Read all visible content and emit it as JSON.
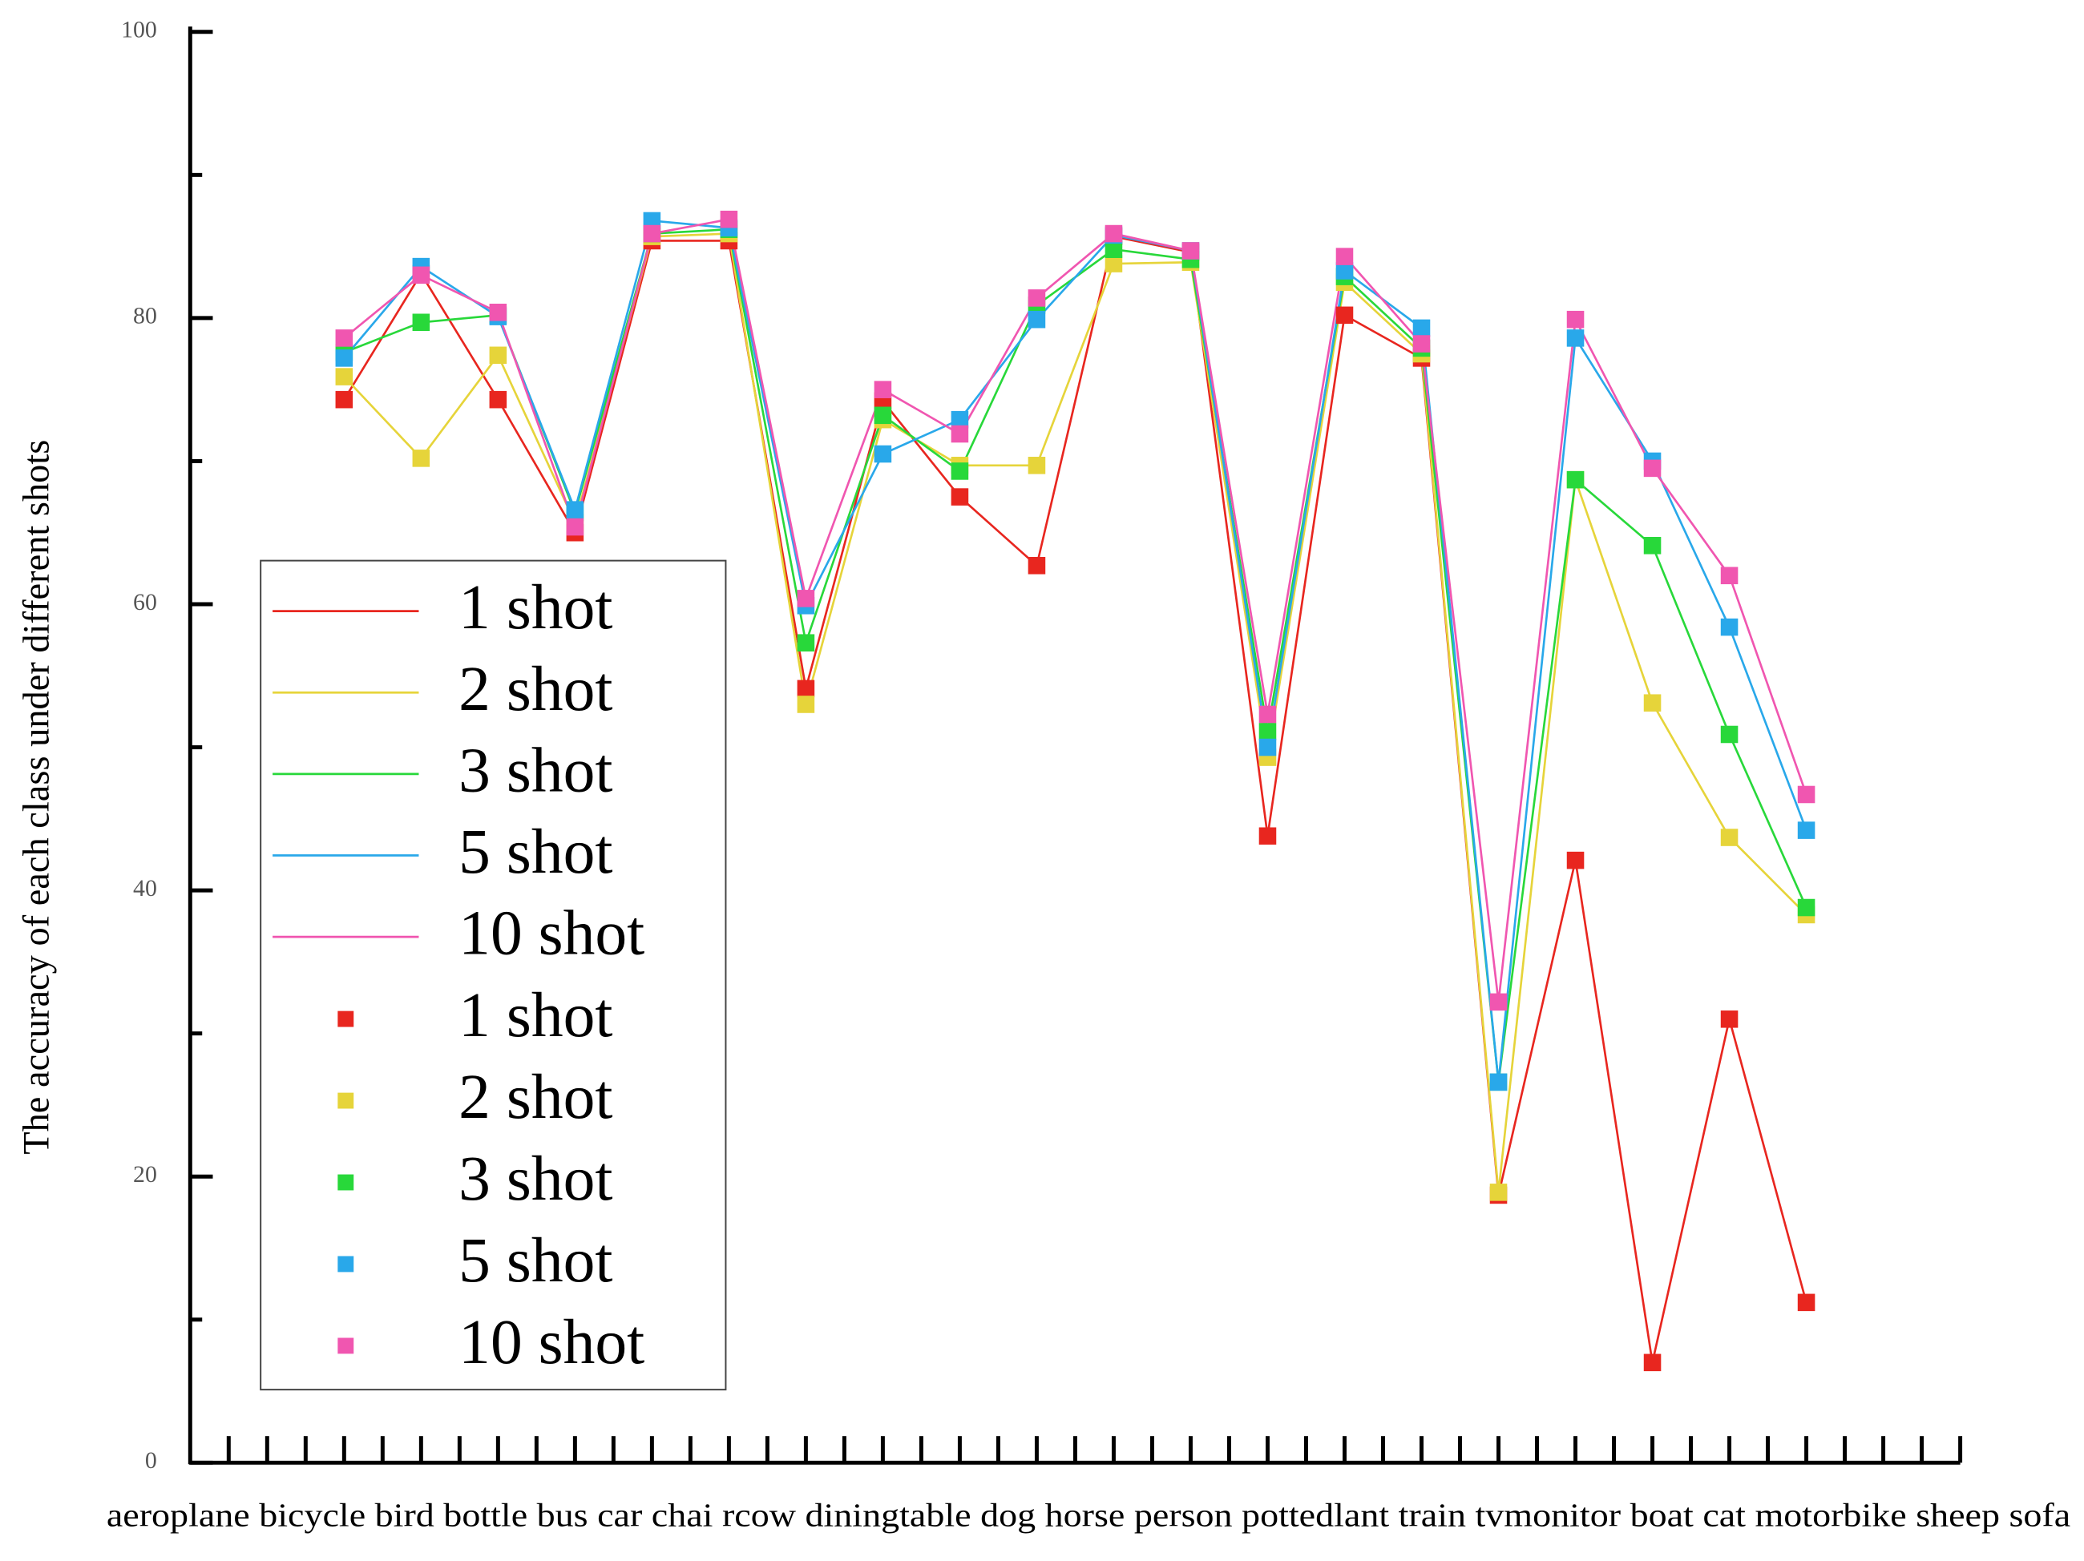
{
  "chart_data": {
    "type": "line",
    "ylabel": "The accuracy of each class under different shots",
    "xlabel": "aeroplane bicycle bird bottle bus car chai rcow diningtable dog horse person pottedlant train tvmonitor boat cat motorbike sheep sofa",
    "x": [
      2,
      3,
      4,
      5,
      6,
      7,
      8,
      9,
      10,
      11,
      12,
      13,
      14,
      15,
      16,
      17,
      18,
      19,
      20,
      21
    ],
    "xlim": [
      0,
      23
    ],
    "xticks": [
      0.5,
      1,
      1.5,
      2,
      2.5,
      3,
      3.5,
      4,
      4.5,
      5,
      5.5,
      6,
      6.5,
      7,
      7.5,
      8,
      8.5,
      9,
      9.5,
      10,
      10.5,
      11,
      11.5,
      12,
      12.5,
      13,
      13.5,
      14,
      14.5,
      15,
      15.5,
      16,
      16.5,
      17,
      17.5,
      18,
      18.5,
      19,
      19.5,
      20,
      20.5,
      21,
      21.5,
      22,
      22.5,
      23
    ],
    "ylim": [
      0,
      100
    ],
    "yticks": [
      0,
      20,
      40,
      60,
      80,
      100
    ],
    "yminorticks": [
      10,
      30,
      50,
      70,
      90
    ],
    "series": [
      {
        "name": "1 shot",
        "color": "#e8261f",
        "values": [
          74.3,
          83.1,
          74.3,
          65.0,
          85.4,
          85.4,
          54.1,
          74.2,
          67.5,
          62.7,
          85.7,
          84.6,
          43.8,
          80.2,
          77.2,
          18.7,
          42.1,
          7.0,
          31.0,
          11.2
        ]
      },
      {
        "name": "2 shot",
        "color": "#e6d43a",
        "values": [
          75.9,
          70.2,
          77.4,
          65.7,
          85.7,
          85.9,
          53.0,
          72.9,
          69.7,
          69.7,
          83.8,
          83.9,
          49.3,
          82.5,
          77.5,
          18.9,
          68.7,
          53.1,
          43.7,
          38.3
        ]
      },
      {
        "name": "3 shot",
        "color": "#28d83a",
        "values": [
          77.6,
          79.7,
          80.2,
          66.4,
          85.9,
          86.2,
          57.3,
          73.2,
          69.3,
          80.9,
          84.8,
          84.1,
          51.1,
          82.9,
          77.9,
          26.6,
          68.7,
          64.1,
          50.9,
          38.8
        ]
      },
      {
        "name": "5 shot",
        "color": "#29a8ea",
        "values": [
          77.2,
          83.6,
          80.1,
          66.6,
          86.8,
          86.3,
          59.9,
          70.5,
          72.9,
          79.9,
          85.8,
          84.7,
          50.0,
          83.3,
          79.3,
          26.6,
          78.6,
          70.0,
          58.4,
          44.2
        ]
      },
      {
        "name": "10 shot",
        "color": "#f056b0",
        "values": [
          78.6,
          83.0,
          80.4,
          65.4,
          85.9,
          86.9,
          60.4,
          75.0,
          71.9,
          81.4,
          85.9,
          84.7,
          52.3,
          84.3,
          78.2,
          32.2,
          79.9,
          69.5,
          62.0,
          46.7
        ]
      }
    ]
  }
}
